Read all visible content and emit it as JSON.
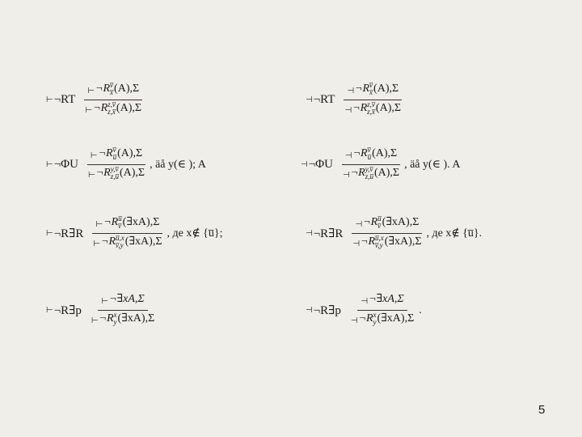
{
  "rules": [
    {
      "ts": "⊢",
      "name": "¬RT",
      "num": {
        "ts": "⊢",
        "pre": "¬R",
        "sup": "v̅",
        "sub": "x̅",
        "arg": "(A),Σ"
      },
      "den": {
        "ts": "⊢",
        "pre": "¬R",
        "sup": "z,v̅",
        "sub": "z,x̅",
        "arg": "(A),Σ"
      },
      "cond": ""
    },
    {
      "ts": "⊣",
      "name": "¬RT",
      "num": {
        "ts": "⊣",
        "pre": "¬R",
        "sup": "v̅",
        "sub": "x̅",
        "arg": "(A),Σ"
      },
      "den": {
        "ts": "⊣",
        "pre": "¬R",
        "sup": "z,v̅",
        "sub": "z,x̅",
        "arg": "(A),Σ"
      },
      "cond": ""
    },
    {
      "ts": "⊢",
      "name": "¬ΦU",
      "num": {
        "ts": "⊢",
        "pre": "¬R",
        "sup": "v̅",
        "sub": "u̅",
        "arg": "(A),Σ"
      },
      "den": {
        "ts": "⊢",
        "pre": "¬R",
        "sup": "y,v̅",
        "sub": "z,u̅",
        "arg": "(A),Σ"
      },
      "cond": ", äå y(∈ ); A"
    },
    {
      "ts": "⊣",
      "name": "¬ΦU",
      "num": {
        "ts": "⊣",
        "pre": "¬R",
        "sup": "v̅",
        "sub": "u̅",
        "arg": "(A),Σ"
      },
      "den": {
        "ts": "⊣",
        "pre": "¬R",
        "sup": "y,v̅",
        "sub": "z,u̅",
        "arg": "(A),Σ"
      },
      "cond": ", äå y(∈ ). A"
    },
    {
      "ts": "⊢",
      "name": "¬R∃R",
      "num": {
        "ts": "⊢",
        "pre": "¬R",
        "sup": "u̅",
        "sub": "v̅",
        "arg": "(∃xA),Σ"
      },
      "den": {
        "ts": "⊢",
        "pre": "¬R",
        "sup": "u̅,x",
        "sub": "v̅,y",
        "arg": "(∃xA),Σ"
      },
      "cond": ", де x∉ {u̅};"
    },
    {
      "ts": "⊣",
      "name": "¬R∃R",
      "num": {
        "ts": "⊣",
        "pre": "¬R",
        "sup": "u̅",
        "sub": "v̅",
        "arg": "(∃xA),Σ"
      },
      "den": {
        "ts": "⊣",
        "pre": "¬R",
        "sup": "u̅,x",
        "sub": "v̅,y",
        "arg": "(∃xA),Σ"
      },
      "cond": ", де x∉ {u̅}."
    },
    {
      "ts": "⊢",
      "name": "¬R∃p",
      "num": {
        "ts": "⊢",
        "pre": "¬∃xA,Σ",
        "sup": "",
        "sub": "",
        "arg": ""
      },
      "den": {
        "ts": "⊢",
        "pre": "¬R",
        "sup": "x",
        "sub": "y",
        "arg": "(∃xA),Σ"
      },
      "cond": ""
    },
    {
      "ts": "⊣",
      "name": "¬R∃p",
      "num": {
        "ts": "⊣",
        "pre": "¬∃xA,Σ",
        "sup": "",
        "sub": "",
        "arg": ""
      },
      "den": {
        "ts": "⊣",
        "pre": "¬R",
        "sup": "x",
        "sub": "y",
        "arg": "(∃xA),Σ"
      },
      "cond": "."
    }
  ],
  "page_number": "5"
}
